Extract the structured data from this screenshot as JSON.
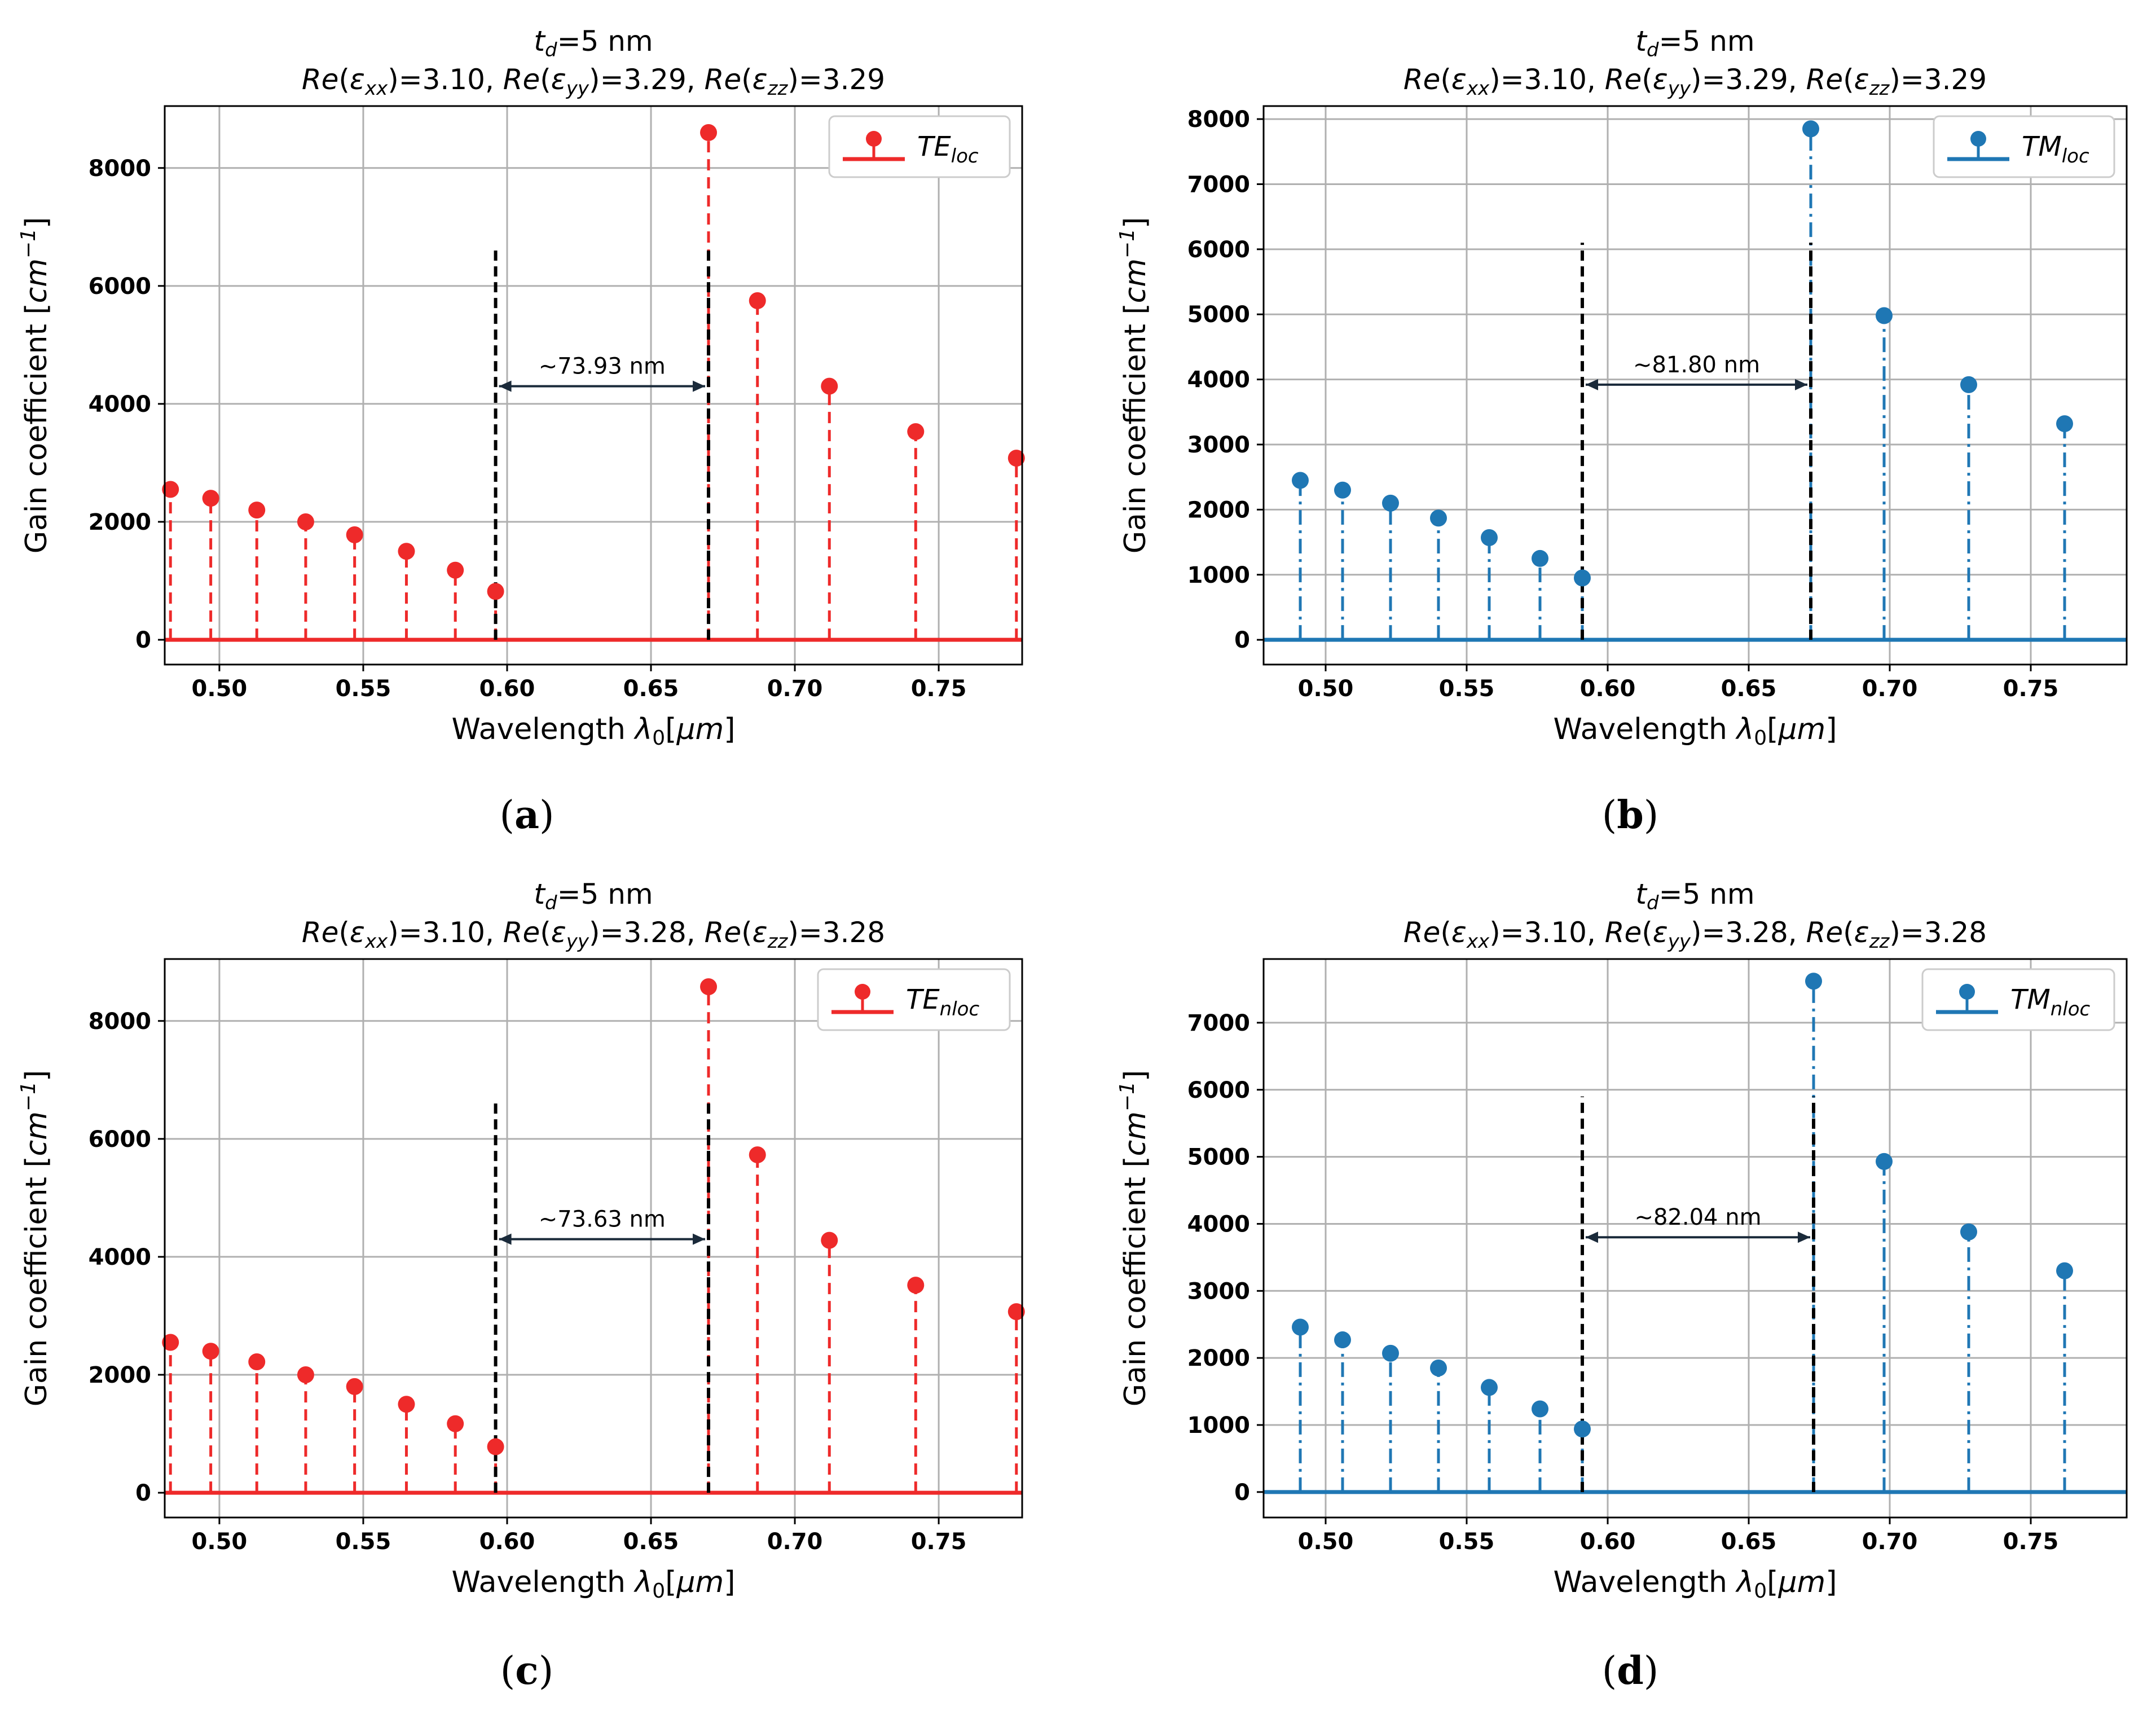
{
  "chart_data": [
    {
      "id": "a",
      "type": "stem",
      "title": "t_d=5 nm",
      "title_line1": {
        "base": "t",
        "sub": "d",
        "rest": "=5 nm"
      },
      "title_line2": "Re(εxx)=3.10, Re(εyy)=3.29, Re(εzz)=3.29",
      "title_line2_parts": [
        {
          "eps": "xx",
          "val": "=3.10, "
        },
        {
          "eps": "yy",
          "val": "=3.29, "
        },
        {
          "eps": "zz",
          "val": "=3.29"
        }
      ],
      "xlabel": "Wavelength λ0[μm]",
      "ylabel": "Gain coefficient [cm−1]",
      "xlim": [
        0.481,
        0.779
      ],
      "ylim": [
        -420,
        9050
      ],
      "xticks": [
        0.5,
        0.55,
        0.6,
        0.65,
        0.7,
        0.75
      ],
      "xtick_labels": [
        "0.50",
        "0.55",
        "0.60",
        "0.65",
        "0.70",
        "0.75"
      ],
      "yticks": [
        0,
        2000,
        4000,
        6000,
        8000
      ],
      "ytick_labels": [
        "0",
        "2000",
        "4000",
        "6000",
        "8000"
      ],
      "color": "#ee2a2a",
      "linestyle": "dashed",
      "legend": {
        "text": "TE",
        "sub": "loc",
        "position": "top-right"
      },
      "series": [
        {
          "name": "TEloc",
          "x": [
            0.483,
            0.497,
            0.513,
            0.53,
            0.547,
            0.565,
            0.582,
            0.596,
            0.67,
            0.687,
            0.712,
            0.742,
            0.777
          ],
          "y": [
            2550,
            2400,
            2200,
            2000,
            1780,
            1500,
            1180,
            820,
            8600,
            5750,
            4300,
            3530,
            3080
          ]
        }
      ],
      "vlines": [
        {
          "x": 0.596,
          "ymax": 6650
        },
        {
          "x": 0.67,
          "ymax": 6650
        }
      ],
      "annotation": {
        "text": "~73.93 nm",
        "x1": 0.596,
        "x2": 0.67,
        "y": 4300
      },
      "caption": "a"
    },
    {
      "id": "b",
      "type": "stem",
      "title": "t_d=5 nm",
      "title_line1": {
        "base": "t",
        "sub": "d",
        "rest": "=5 nm"
      },
      "title_line2": "Re(εxx)=3.10, Re(εyy)=3.29, Re(εzz)=3.29",
      "title_line2_parts": [
        {
          "eps": "xx",
          "val": "=3.10, "
        },
        {
          "eps": "yy",
          "val": "=3.29, "
        },
        {
          "eps": "zz",
          "val": "=3.29"
        }
      ],
      "xlabel": "Wavelength λ0[μm]",
      "ylabel": "Gain coefficient [cm−1]",
      "xlim": [
        0.478,
        0.784
      ],
      "ylim": [
        -380,
        8200
      ],
      "xticks": [
        0.5,
        0.55,
        0.6,
        0.65,
        0.7,
        0.75
      ],
      "xtick_labels": [
        "0.50",
        "0.55",
        "0.60",
        "0.65",
        "0.70",
        "0.75"
      ],
      "yticks": [
        0,
        1000,
        2000,
        3000,
        4000,
        5000,
        6000,
        7000,
        8000
      ],
      "ytick_labels": [
        "0",
        "1000",
        "2000",
        "3000",
        "4000",
        "5000",
        "6000",
        "7000",
        "8000"
      ],
      "color": "#1f77b4",
      "linestyle": "dashdot",
      "legend": {
        "text": "TM",
        "sub": "loc",
        "position": "top-right"
      },
      "series": [
        {
          "name": "TMloc",
          "x": [
            0.491,
            0.506,
            0.523,
            0.54,
            0.558,
            0.576,
            0.591,
            0.672,
            0.698,
            0.728,
            0.762
          ],
          "y": [
            2450,
            2300,
            2100,
            1870,
            1570,
            1250,
            950,
            7850,
            4980,
            3920,
            3320
          ]
        }
      ],
      "vlines": [
        {
          "x": 0.591,
          "ymax": 6100
        },
        {
          "x": 0.672,
          "ymax": 6100
        }
      ],
      "annotation": {
        "text": "~81.80 nm",
        "x1": 0.591,
        "x2": 0.672,
        "y": 3920
      },
      "caption": "b"
    },
    {
      "id": "c",
      "type": "stem",
      "title": "t_d=5 nm",
      "title_line1": {
        "base": "t",
        "sub": "d",
        "rest": "=5 nm"
      },
      "title_line2": "Re(εxx)=3.10, Re(εyy)=3.28, Re(εzz)=3.28",
      "title_line2_parts": [
        {
          "eps": "xx",
          "val": "=3.10, "
        },
        {
          "eps": "yy",
          "val": "=3.28, "
        },
        {
          "eps": "zz",
          "val": "=3.28"
        }
      ],
      "xlabel": "Wavelength λ0[μm]",
      "ylabel": "Gain coefficient [cm−1]",
      "xlim": [
        0.481,
        0.779
      ],
      "ylim": [
        -420,
        9050
      ],
      "xticks": [
        0.5,
        0.55,
        0.6,
        0.65,
        0.7,
        0.75
      ],
      "xtick_labels": [
        "0.50",
        "0.55",
        "0.60",
        "0.65",
        "0.70",
        "0.75"
      ],
      "yticks": [
        0,
        2000,
        4000,
        6000,
        8000
      ],
      "ytick_labels": [
        "0",
        "2000",
        "4000",
        "6000",
        "8000"
      ],
      "color": "#ee2a2a",
      "linestyle": "dashed",
      "legend": {
        "text": "TE",
        "sub": "nloc",
        "position": "top-right"
      },
      "series": [
        {
          "name": "TEnloc",
          "x": [
            0.483,
            0.497,
            0.513,
            0.53,
            0.547,
            0.565,
            0.582,
            0.596,
            0.67,
            0.687,
            0.712,
            0.742,
            0.777
          ],
          "y": [
            2550,
            2400,
            2220,
            2000,
            1800,
            1500,
            1170,
            780,
            8580,
            5730,
            4280,
            3520,
            3070
          ]
        }
      ],
      "vlines": [
        {
          "x": 0.596,
          "ymax": 6650
        },
        {
          "x": 0.67,
          "ymax": 6650
        }
      ],
      "annotation": {
        "text": "~73.63 nm",
        "x1": 0.596,
        "x2": 0.67,
        "y": 4300
      },
      "caption": "c"
    },
    {
      "id": "d",
      "type": "stem",
      "title": "t_d=5 nm",
      "title_line1": {
        "base": "t",
        "sub": "d",
        "rest": "=5 nm"
      },
      "title_line2": "Re(εxx)=3.10, Re(εyy)=3.28, Re(εzz)=3.28",
      "title_line2_parts": [
        {
          "eps": "xx",
          "val": "=3.10, "
        },
        {
          "eps": "yy",
          "val": "=3.28, "
        },
        {
          "eps": "zz",
          "val": "=3.28"
        }
      ],
      "xlabel": "Wavelength λ0[μm]",
      "ylabel": "Gain coefficient [cm−1]",
      "xlim": [
        0.478,
        0.784
      ],
      "ylim": [
        -380,
        7950
      ],
      "xticks": [
        0.5,
        0.55,
        0.6,
        0.65,
        0.7,
        0.75
      ],
      "xtick_labels": [
        "0.50",
        "0.55",
        "0.60",
        "0.65",
        "0.70",
        "0.75"
      ],
      "yticks": [
        0,
        1000,
        2000,
        3000,
        4000,
        5000,
        6000,
        7000
      ],
      "ytick_labels": [
        "0",
        "1000",
        "2000",
        "3000",
        "4000",
        "5000",
        "6000",
        "7000"
      ],
      "color": "#1f77b4",
      "linestyle": "dashdot",
      "legend": {
        "text": "TM",
        "sub": "nloc",
        "position": "top-right"
      },
      "series": [
        {
          "name": "TMnloc",
          "x": [
            0.491,
            0.506,
            0.523,
            0.54,
            0.558,
            0.576,
            0.591,
            0.673,
            0.698,
            0.728,
            0.762
          ],
          "y": [
            2460,
            2270,
            2070,
            1850,
            1560,
            1240,
            940,
            7620,
            4930,
            3880,
            3300
          ]
        }
      ],
      "vlines": [
        {
          "x": 0.591,
          "ymax": 5900
        },
        {
          "x": 0.673,
          "ymax": 5900
        }
      ],
      "annotation": {
        "text": "~82.04 nm",
        "x1": 0.591,
        "x2": 0.673,
        "y": 3800
      },
      "caption": "d"
    }
  ]
}
